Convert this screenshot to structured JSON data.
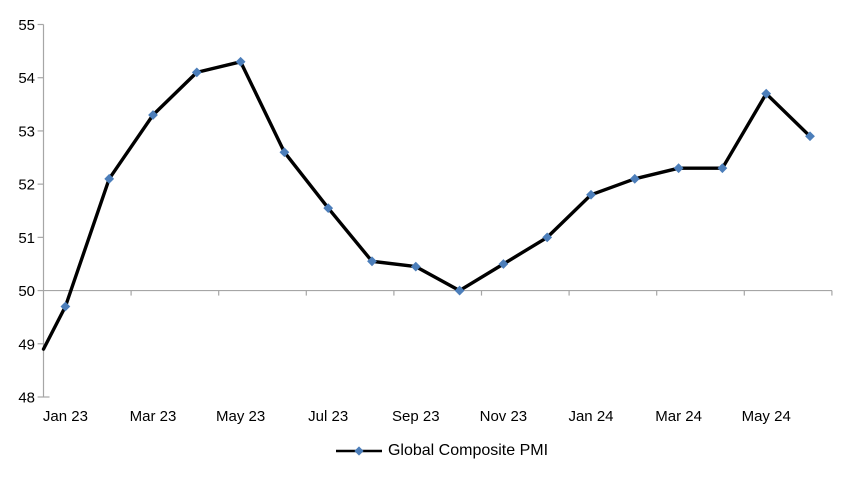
{
  "chart_data": {
    "type": "line",
    "title": "",
    "series": [
      {
        "name": "Global Composite PMI",
        "values": [
          48.9,
          49.7,
          52.1,
          53.3,
          54.1,
          54.3,
          52.6,
          51.55,
          50.55,
          50.45,
          50.0,
          50.5,
          51.0,
          51.8,
          52.1,
          52.3,
          52.3,
          53.7,
          52.9
        ],
        "line_color": "#000000",
        "marker": "diamond",
        "marker_color": "#4C7EBA",
        "first_point_has_marker": false
      }
    ],
    "categories": [
      "Dec 22",
      "Jan 23",
      "Feb 23",
      "Mar 23",
      "Apr 23",
      "May 23",
      "Jun 23",
      "Jul 23",
      "Aug 23",
      "Sep 23",
      "Oct 23",
      "Nov 23",
      "Dec 23",
      "Jan 24",
      "Feb 24",
      "Mar 24",
      "Apr 24",
      "May 24",
      "Jun 24"
    ],
    "x_tick_labels": [
      "Jan 23",
      "Mar 23",
      "May 23",
      "Jul 23",
      "Sep 23",
      "Nov 23",
      "Jan 24",
      "Mar 24",
      "May 24"
    ],
    "x_label_interval": 2,
    "y_tick_labels": [
      "55",
      "54",
      "53",
      "52",
      "51",
      "50",
      "49",
      "48"
    ],
    "ylim": [
      48,
      55
    ],
    "y_axis_interval": 1,
    "category_axis_crosses_at": 50,
    "grid": "off",
    "axis_color": "#A6A6A6",
    "background": "#FFFFFF",
    "legend": {
      "position": "bottom",
      "label": "Global Composite PMI"
    }
  }
}
